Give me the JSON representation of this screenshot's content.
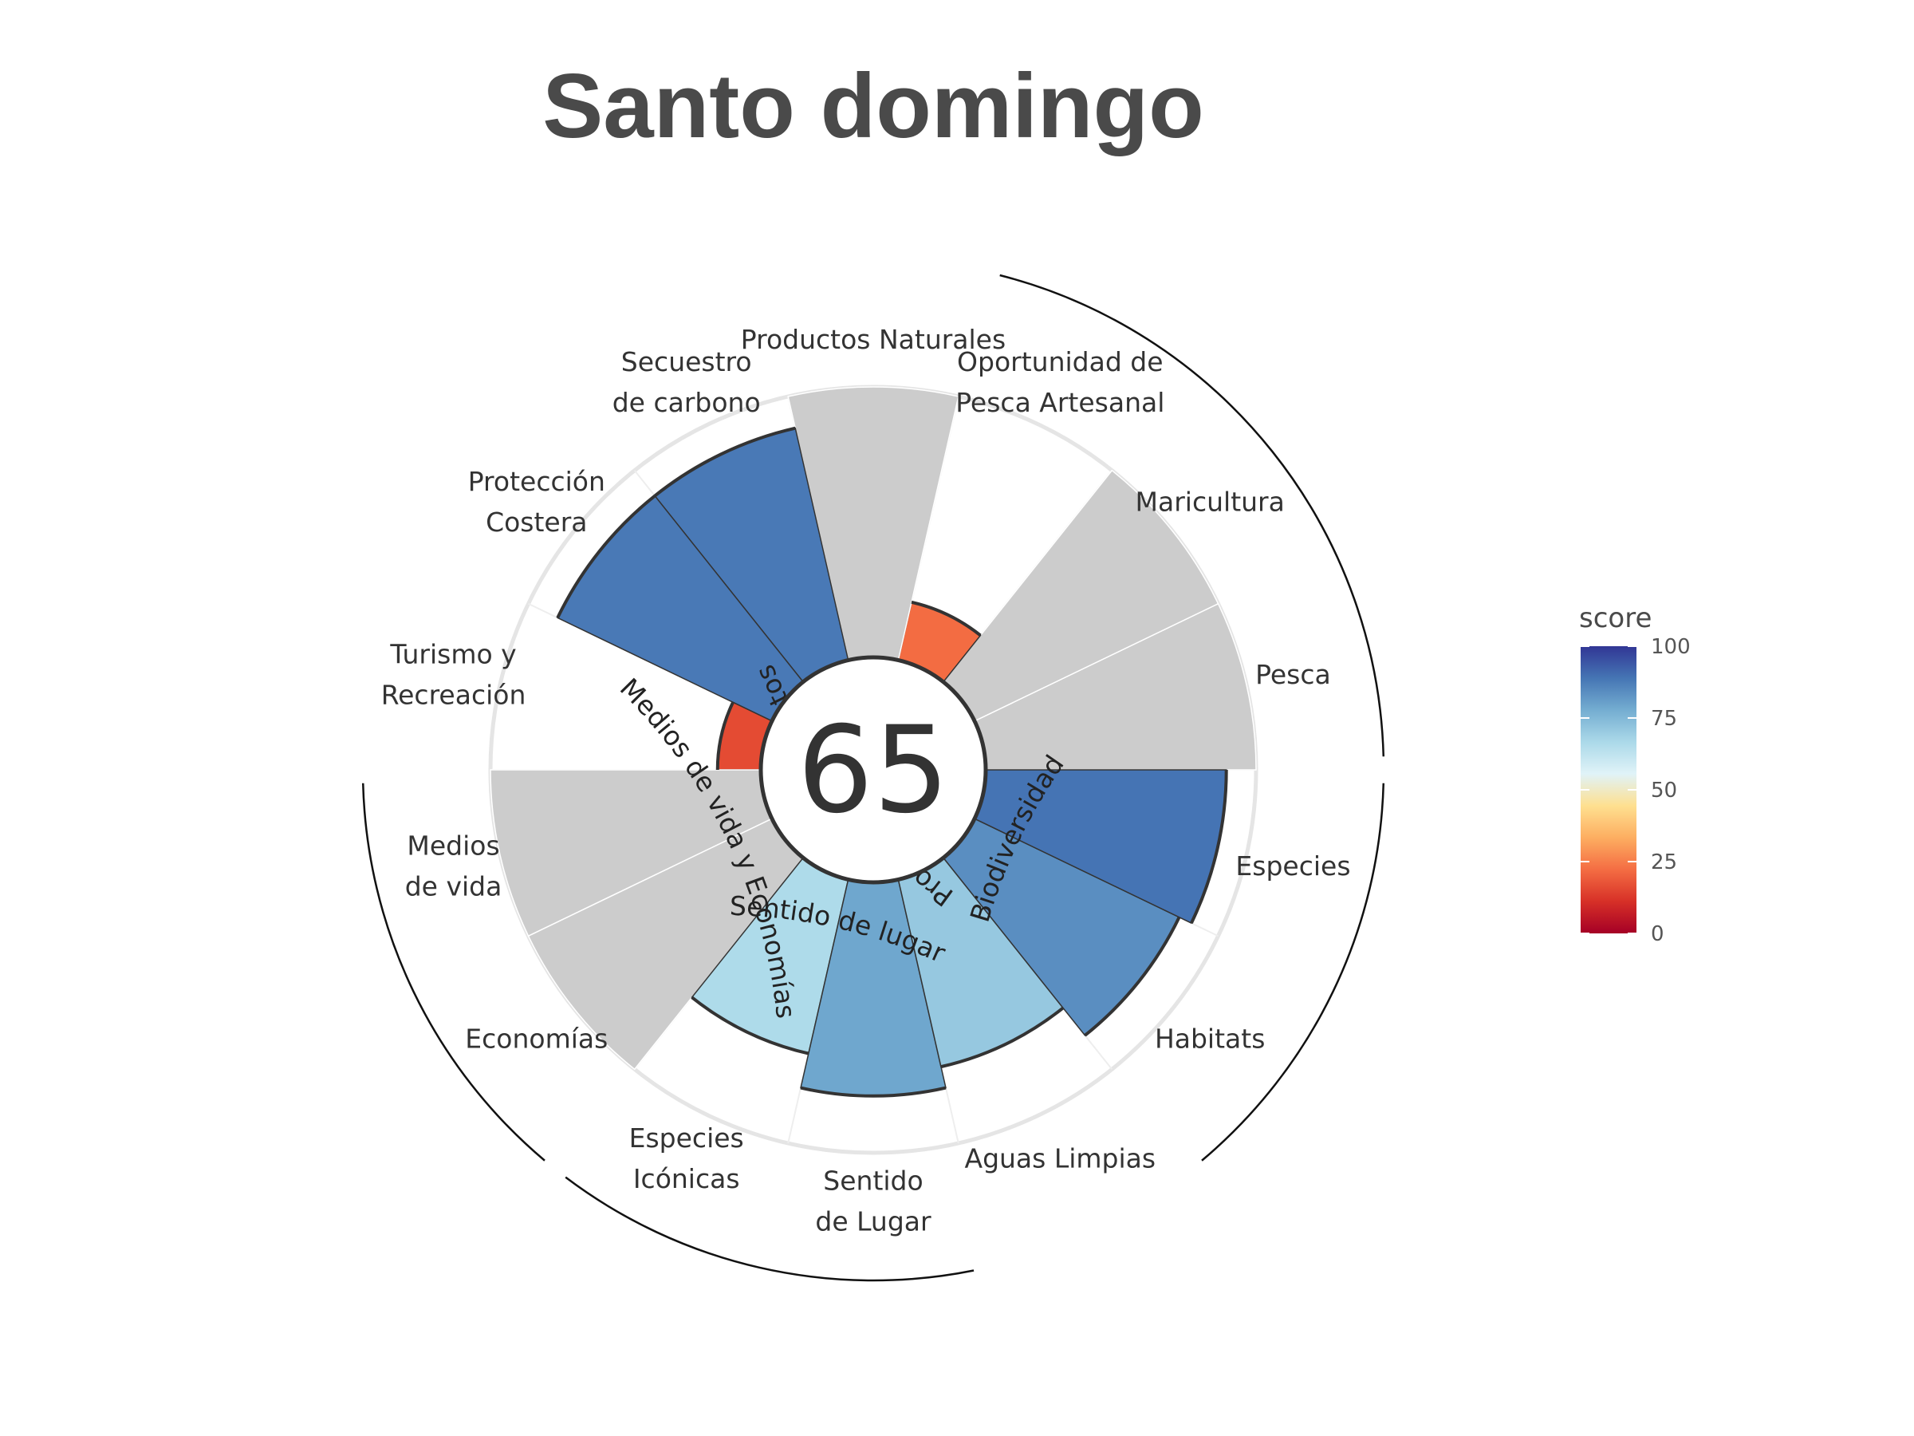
{
  "chart_data": {
    "type": "polar-bar",
    "title": "Santo domingo",
    "center_score": "65",
    "max": 100,
    "goals": [
      {
        "label": [
          "Pesca"
        ],
        "score": null
      },
      {
        "label": [
          "Maricultura"
        ],
        "score": null
      },
      {
        "label": [
          "Oportunidad de",
          "Pesca Artesanal"
        ],
        "score": 22
      },
      {
        "label": [
          "Productos Naturales"
        ],
        "score": null
      },
      {
        "label": [
          "Secuestro",
          "de carbono"
        ],
        "score": 88
      },
      {
        "label": [
          "Protección",
          "Costera"
        ],
        "score": 88
      },
      {
        "label": [
          "Turismo y",
          "Recreación"
        ],
        "score": 16
      },
      {
        "label": [
          "Medios",
          "de vida"
        ],
        "score": null
      },
      {
        "label": [
          "Economías"
        ],
        "score": null
      },
      {
        "label": [
          "Especies",
          "Icónicas"
        ],
        "score": 66
      },
      {
        "label": [
          "Sentido",
          "de Lugar"
        ],
        "score": 79
      },
      {
        "label": [
          "Aguas Limpias"
        ],
        "score": 71
      },
      {
        "label": [
          "Habitats"
        ],
        "score": 84
      },
      {
        "label": [
          "Especies"
        ],
        "score": 89
      }
    ],
    "groups": [
      {
        "label": "Provisión de alimentos",
        "start_index": 0,
        "end_index": 2
      },
      {
        "label": "Biodiversidad",
        "start_index": 12,
        "end_index": 13
      },
      {
        "label": "Sentido de lugar",
        "start_index": 9,
        "end_index": 10
      },
      {
        "label": "Medios de vida y Economías",
        "start_index": 7,
        "end_index": 8
      }
    ],
    "legend": {
      "title": "score",
      "ticks": [
        "100",
        "75",
        "50",
        "25",
        "0"
      ],
      "tick_values": [
        100,
        75,
        50,
        25,
        0
      ],
      "placement": "right"
    },
    "colors": {
      "na_fill": "#cccccc",
      "outline": "#333333",
      "ring": "#e5e5e5",
      "scale": [
        "#a50026",
        "#d73027",
        "#f46d43",
        "#fdae61",
        "#fee090",
        "#e0f3f8",
        "#abd9e9",
        "#74add1",
        "#4575b4",
        "#313695"
      ]
    }
  }
}
